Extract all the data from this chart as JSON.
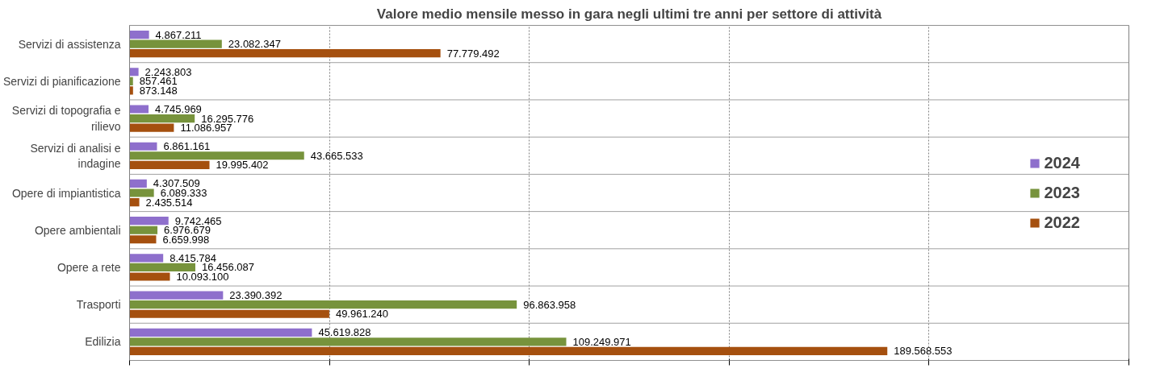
{
  "chart_data": {
    "type": "bar",
    "orientation": "horizontal",
    "title": "Valore medio mensile messo in gara negli ultimi tre anni per settore di attività",
    "categories": [
      "Servizi di assistenza",
      "Servizi di pianificazione",
      "Servizi di topografia e rilievo",
      "Servizi di analisi e indagine",
      "Opere di impiantistica",
      "Opere ambientali",
      "Opere a rete",
      "Trasporti",
      "Edilizia"
    ],
    "series": [
      {
        "name": "2024",
        "color": "#8e6fcc",
        "values": [
          4867211,
          2243803,
          4745969,
          6861161,
          4307509,
          9742465,
          8415784,
          23390392,
          45619828
        ],
        "value_labels": [
          "4.867.211",
          "2.243.803",
          "4.745.969",
          "6.861.161",
          "4.307.509",
          "9.742.465",
          "8.415.784",
          "23.390.392",
          "45.619.828"
        ]
      },
      {
        "name": "2023",
        "color": "#77933c",
        "values": [
          23082347,
          857461,
          16295776,
          43665533,
          6089333,
          6976679,
          16456087,
          96863958,
          109249971
        ],
        "value_labels": [
          "23.082.347",
          "857.461",
          "16.295.776",
          "43.665.533",
          "6.089.333",
          "6.976.679",
          "16.456.087",
          "96.863.958",
          "109.249.971"
        ]
      },
      {
        "name": "2022",
        "color": "#a5500f",
        "values": [
          77779492,
          873148,
          11086957,
          19995402,
          2435514,
          6659998,
          10093100,
          49961240,
          189568553
        ],
        "value_labels": [
          "77.779.492",
          "873.148",
          "11.086.957",
          "19.995.402",
          "2.435.514",
          "6.659.998",
          "10.093.100",
          "49.961.240",
          "189.568.553"
        ]
      }
    ],
    "xlim": [
      0,
      250000000
    ],
    "xticks": [
      {
        "value": 0,
        "label": null
      },
      {
        "value": 50000000,
        "label": null
      },
      {
        "value": 100000000,
        "label": null
      },
      {
        "value": 150000000,
        "label": null
      },
      {
        "value": 200000000,
        "label": null
      },
      {
        "value": 250000000,
        "label": null
      }
    ],
    "tick_labels": "y",
    "grid": "x",
    "legend": "right"
  }
}
